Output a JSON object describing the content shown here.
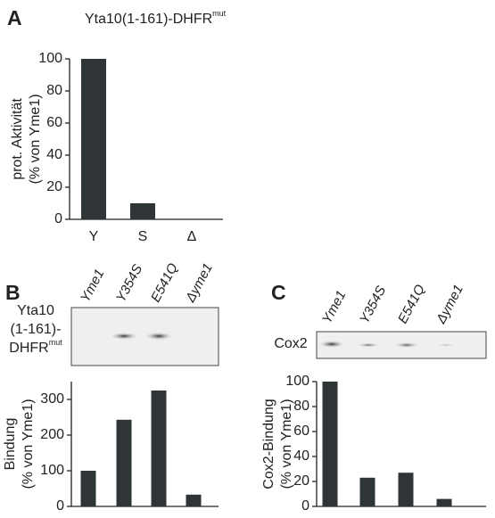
{
  "chart_data": [
    {
      "type": "bar",
      "panel": "A",
      "title": "Yta10(1-161)-DHFR",
      "title_superscript": "mut",
      "ylabel": [
        "prot. Aktivität",
        "(% von Yme1)"
      ],
      "categories": [
        "Y",
        "S",
        "Δ"
      ],
      "values": [
        100,
        10,
        0
      ],
      "color": "#2f3537",
      "ylim": [
        0,
        100
      ],
      "yticks": [
        0,
        20,
        40,
        60,
        80,
        100
      ]
    },
    {
      "type": "bar",
      "panel": "B",
      "blot_label": {
        "lines": [
          "Yta10",
          "(1-161)-",
          "DHFR"
        ],
        "superscript": "mut"
      },
      "ylabel": [
        "Bindung",
        "(% von Yme1)"
      ],
      "categories": [
        "Yme1",
        "Y354S",
        "E541Q",
        "Δyme1"
      ],
      "values": [
        100,
        243,
        325,
        33
      ],
      "color": "#2f3537",
      "ylim": [
        0,
        350
      ],
      "yticks": [
        0,
        100,
        200,
        300
      ]
    },
    {
      "type": "bar",
      "panel": "C",
      "blot_label": {
        "lines": [
          "Cox2"
        ]
      },
      "ylabel": [
        "Cox2-Bindung",
        "(% von Yme1)"
      ],
      "categories": [
        "Yme1",
        "Y354S",
        "E541Q",
        "Δyme1"
      ],
      "values": [
        100,
        23,
        27,
        6
      ],
      "color": "#2f3537",
      "ylim": [
        0,
        100
      ],
      "yticks": [
        0,
        20,
        40,
        60,
        80,
        100
      ]
    }
  ]
}
